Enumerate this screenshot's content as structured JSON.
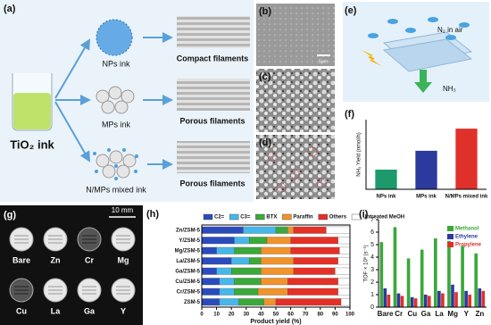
{
  "figure": {
    "a": {
      "label": "(a)",
      "ink": "TiO₂ ink",
      "inks": [
        "NPs ink",
        "MPs ink",
        "N/MPs mixed ink"
      ],
      "filaments": [
        "Compact filaments",
        "Porous filaments",
        "Porous filaments"
      ]
    },
    "b": {
      "label": "(b)",
      "scale": "5μm"
    },
    "c": {
      "label": "(c)"
    },
    "d": {
      "label": "(d)"
    },
    "e": {
      "label": "(e)",
      "gas": "N₂ in air",
      "product": "NH₃"
    },
    "g": {
      "label": "(g)",
      "scale": "10 mm",
      "samples": [
        "Bare",
        "Zn",
        "Cr",
        "Mg",
        "Cu",
        "La",
        "Ga",
        "Y"
      ]
    }
  },
  "chart_data": [
    {
      "type": "bar",
      "panel_label": "(f)",
      "y_label": "NH₃ Yield (nmol/h)",
      "categories": [
        "NPs ink",
        "MPs ink",
        "N/MPs mixed ink"
      ],
      "values": [
        2.4,
        4.7,
        7.4
      ],
      "colors": [
        "#1d9a6c",
        "#2b3a9c",
        "#e0302a"
      ],
      "ylim": [
        0,
        8.5
      ]
    },
    {
      "type": "barh",
      "stacked": true,
      "panel_label": "(h)",
      "x_label": "Product yield (%)",
      "categories": [
        "Zn/ZSM-5",
        "Y/ZSM-5",
        "Mg/ZSM-5",
        "La/ZSM-5",
        "Ga/ZSM-5",
        "Cu/ZSM-5",
        "Cr/ZSM-5",
        "ZSM-5"
      ],
      "series": [
        {
          "name": "C2=",
          "color": "#2a4bbd",
          "values": [
            28,
            22,
            10,
            20,
            10,
            12,
            12,
            12
          ]
        },
        {
          "name": "C3=",
          "color": "#46b7e8",
          "values": [
            22,
            10,
            12,
            12,
            10,
            10,
            10,
            13
          ]
        },
        {
          "name": "BTX",
          "color": "#3aa83a",
          "values": [
            8,
            12,
            18,
            8,
            20,
            18,
            16,
            17
          ]
        },
        {
          "name": "Paraffin",
          "color": "#f0932b",
          "values": [
            4,
            16,
            20,
            22,
            22,
            18,
            20,
            8
          ]
        },
        {
          "name": "Others",
          "color": "#e53027",
          "values": [
            22,
            32,
            33,
            30,
            28,
            34,
            34,
            44
          ]
        },
        {
          "name": "Untreated MeOH",
          "color": "#ffffff",
          "values": [
            16,
            8,
            7,
            8,
            10,
            8,
            8,
            6
          ]
        }
      ],
      "xlim": [
        0,
        100
      ],
      "xticks": [
        0,
        10,
        20,
        30,
        40,
        50,
        60,
        70,
        80,
        90,
        100
      ]
    },
    {
      "type": "bar",
      "panel_label": "(i)",
      "y_label": "TOF × 10³ (s⁻¹)",
      "categories": [
        "Bare",
        "Cr",
        "Cu",
        "Ga",
        "La",
        "Mg",
        "Y",
        "Zn"
      ],
      "series": [
        {
          "name": "Methanol",
          "color": "#3aa83a",
          "values": [
            5.2,
            6.4,
            3.9,
            4.6,
            5.5,
            5.3,
            4.9,
            4.3
          ]
        },
        {
          "name": "Ethylene",
          "color": "#2b3a9c",
          "values": [
            1.5,
            1.1,
            0.8,
            1.0,
            1.3,
            1.8,
            1.3,
            1.5
          ]
        },
        {
          "name": "Propylene",
          "color": "#e0302a",
          "values": [
            1.0,
            0.9,
            0.7,
            0.9,
            1.1,
            1.2,
            1.0,
            1.3
          ]
        }
      ],
      "ylim": [
        0,
        7
      ],
      "yticks": [
        0,
        1,
        2,
        3,
        4,
        5,
        6,
        7
      ]
    }
  ]
}
